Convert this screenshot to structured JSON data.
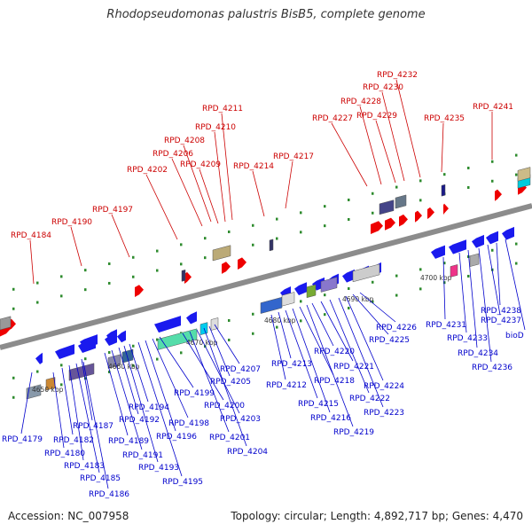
{
  "title": "Rhodopseudomonas palustris BisB5, complete genome",
  "footer": {
    "accession": "Accession: NC_007958",
    "summary": "Topology: circular; Length: 4,892,717 bp; Genes: 4,470"
  },
  "colors": {
    "backbone": "#8c8c8c",
    "forward_gene": "#ee0000",
    "reverse_gene": "#1a1aee",
    "forward_label": "#cc0000",
    "reverse_label": "#0000cc",
    "tick": "#2e8b2e"
  },
  "kbp_labels": [
    "4650 kbp",
    "4660 kbp",
    "4670 kbp",
    "4680 kbp",
    "4690 kbp",
    "4700 kbp"
  ],
  "forward_labels": [
    "RPD_4184",
    "RPD_4190",
    "RPD_4197",
    "RPD_4202",
    "RPD_4206",
    "RPD_4208",
    "RPD_4209",
    "RPD_4210",
    "RPD_4211",
    "RPD_4214",
    "RPD_4217",
    "RPD_4227",
    "RPD_4228",
    "RPD_4229",
    "RPD_4230",
    "RPD_4232",
    "RPD_4235",
    "RPD_4241"
  ],
  "reverse_labels": [
    "RPD_4179",
    "RPD_4180",
    "RPD_4182",
    "RPD_4183",
    "RPD_4185",
    "RPD_4186",
    "RPD_4187",
    "RPD_4189",
    "RPD_4191",
    "RPD_4192",
    "RPD_4193",
    "RPD_4194",
    "RPD_4195",
    "RPD_4196",
    "RPD_4198",
    "RPD_4199",
    "RPD_4200",
    "RPD_4201",
    "RPD_4203",
    "RPD_4204",
    "RPD_4205",
    "RPD_4207",
    "RPD_4212",
    "RPD_4213",
    "RPD_4215",
    "RPD_4216",
    "RPD_4218",
    "RPD_4219",
    "RPD_4220",
    "RPD_4221",
    "RPD_4222",
    "RPD_4223",
    "RPD_4224",
    "RPD_4225",
    "RPD_4226",
    "RPD_4231",
    "RPD_4233",
    "RPD_4234",
    "RPD_4236",
    "RPD_4237",
    "RPD_4238",
    "bioD"
  ]
}
